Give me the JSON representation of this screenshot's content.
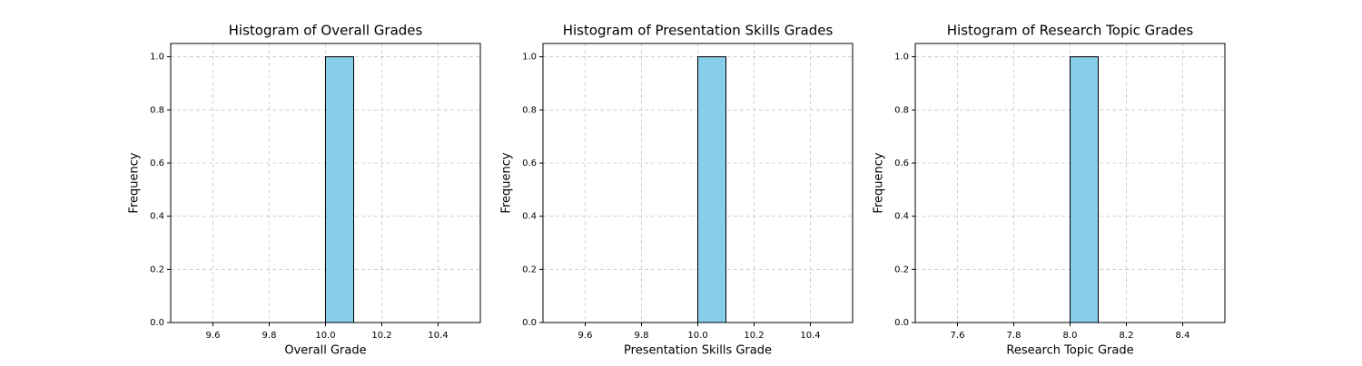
{
  "chart_data": [
    {
      "type": "histogram",
      "title": "Histogram of Overall Grades",
      "x_label": "Overall Grade",
      "y_label": "Frequency",
      "bins": [
        9.5,
        9.6,
        9.7,
        9.8,
        9.9,
        10.0,
        10.1,
        10.2,
        10.3,
        10.4,
        10.5
      ],
      "values": [
        0,
        0,
        0,
        0,
        0,
        1,
        0,
        0,
        0,
        0
      ],
      "color": "#87ceeb",
      "edge_color": "#000000",
      "xlim": [
        9.45,
        10.55
      ],
      "xticks": [
        9.6,
        9.8,
        {
          "value": 10,
          "label": "10.0"
        },
        10.2,
        10.4
      ],
      "ylim": [
        0,
        1.05
      ],
      "yticks": [
        {
          "value": 0,
          "label": "0.0"
        },
        0.2,
        0.4,
        0.6,
        0.8,
        {
          "value": 1,
          "label": "1.0"
        }
      ],
      "grid": true
    },
    {
      "type": "histogram",
      "title": "Histogram of Presentation Skills Grades",
      "x_label": "Presentation Skills Grade",
      "y_label": "Frequency",
      "bins": [
        9.5,
        9.6,
        9.7,
        9.8,
        9.9,
        10.0,
        10.1,
        10.2,
        10.3,
        10.4,
        10.5
      ],
      "values": [
        0,
        0,
        0,
        0,
        0,
        1,
        0,
        0,
        0,
        0
      ],
      "color": "#87ceeb",
      "edge_color": "#000000",
      "xlim": [
        9.45,
        10.55
      ],
      "xticks": [
        9.6,
        9.8,
        {
          "value": 10,
          "label": "10.0"
        },
        10.2,
        10.4
      ],
      "ylim": [
        0,
        1.05
      ],
      "yticks": [
        {
          "value": 0,
          "label": "0.0"
        },
        0.2,
        0.4,
        0.6,
        0.8,
        {
          "value": 1,
          "label": "1.0"
        }
      ],
      "grid": true
    },
    {
      "type": "histogram",
      "title": "Histogram of Research Topic Grades",
      "x_label": "Research Topic Grade",
      "y_label": "Frequency",
      "bins": [
        7.5,
        7.6,
        7.7,
        7.8,
        7.9,
        8.0,
        8.1,
        8.2,
        8.3,
        8.4,
        8.5
      ],
      "values": [
        0,
        0,
        0,
        0,
        0,
        1,
        0,
        0,
        0,
        0
      ],
      "color": "#87ceeb",
      "edge_color": "#000000",
      "xlim": [
        7.45,
        8.55
      ],
      "xticks": [
        7.6,
        7.8,
        {
          "value": 8,
          "label": "8.0"
        },
        8.2,
        8.4
      ],
      "ylim": [
        0,
        1.05
      ],
      "yticks": [
        {
          "value": 0,
          "label": "0.0"
        },
        0.2,
        0.4,
        0.6,
        0.8,
        {
          "value": 1,
          "label": "1.0"
        }
      ],
      "grid": true
    }
  ]
}
